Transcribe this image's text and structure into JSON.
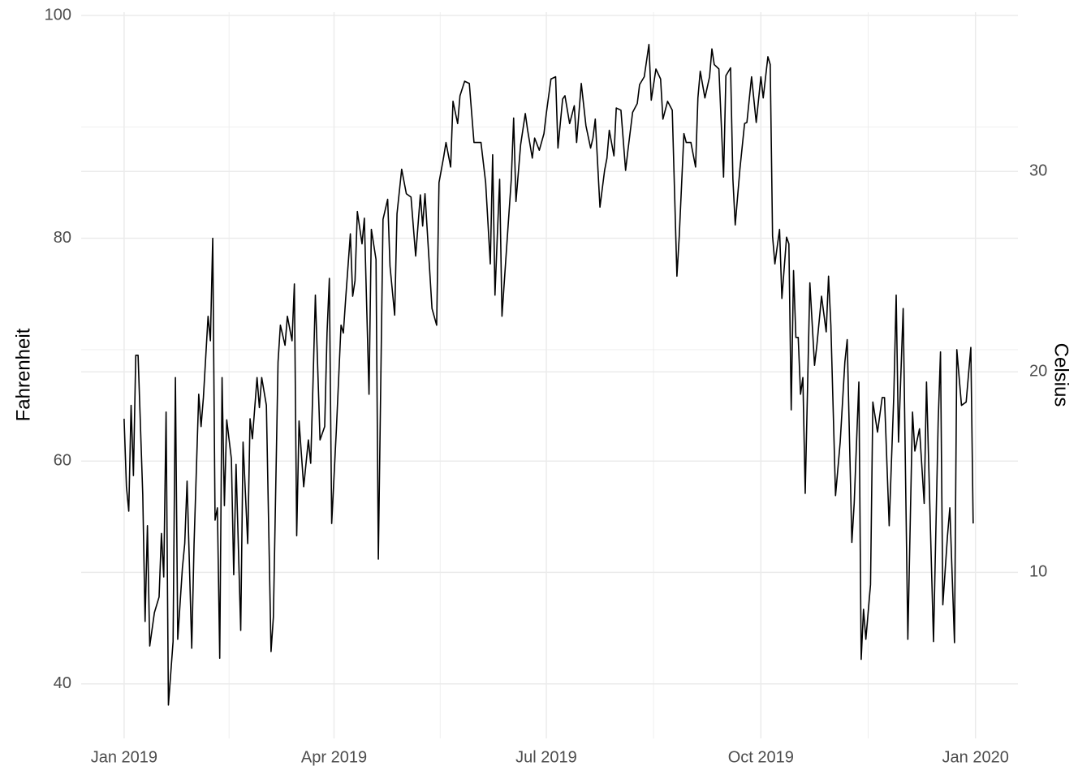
{
  "chart_data": {
    "type": "line",
    "ylabel": "Fahrenheit",
    "y2label": "Celsius",
    "color": "#000000",
    "grid": true,
    "xlim": [
      -18.4,
      383.2
    ],
    "xticks": [
      {
        "value": 0,
        "label": "Jan 2019"
      },
      {
        "value": 90,
        "label": "Apr 2019"
      },
      {
        "value": 181,
        "label": "Jul 2019"
      },
      {
        "value": 273,
        "label": "Oct 2019"
      },
      {
        "value": 365,
        "label": "Jan 2020"
      }
    ],
    "x_minor_ticks": [
      45,
      135.5,
      227,
      319
    ],
    "ylim": [
      35.1,
      100.3
    ],
    "yticks": [
      40,
      60,
      80,
      100
    ],
    "y_minor_ticks": [
      50,
      70,
      90
    ],
    "y2lim": [
      1.72,
      37.94
    ],
    "y2ticks": [
      10,
      20,
      30
    ],
    "x": [
      0,
      1,
      2,
      3,
      4,
      5,
      6,
      8,
      9,
      10,
      11,
      13,
      15,
      16,
      17,
      18,
      19,
      21,
      22,
      23,
      25,
      26,
      27,
      29,
      30,
      32,
      33,
      34,
      36,
      37,
      38,
      39,
      40,
      41,
      42,
      43,
      44,
      46,
      47,
      48,
      50,
      51,
      53,
      54,
      55,
      57,
      58,
      59,
      61,
      63,
      64,
      66,
      67,
      69,
      70,
      72,
      73,
      74,
      75,
      77,
      79,
      80,
      81,
      82,
      84,
      86,
      87,
      88,
      89,
      91,
      93,
      94,
      95,
      97,
      98,
      99,
      100,
      102,
      103,
      105,
      106,
      108,
      109,
      111,
      113,
      114,
      116,
      117,
      119,
      121,
      123,
      125,
      127,
      128,
      129,
      132,
      134,
      135,
      137,
      138,
      140,
      141,
      143,
      144,
      146,
      148,
      150,
      153,
      155,
      157,
      158,
      159,
      160,
      161,
      162,
      164,
      166,
      167,
      168,
      170,
      172,
      173,
      175,
      176,
      178,
      180,
      181,
      183,
      185,
      186,
      188,
      189,
      191,
      193,
      194,
      196,
      198,
      200,
      201,
      202,
      204,
      206,
      207,
      208,
      210,
      211,
      213,
      215,
      216,
      218,
      220,
      221,
      223,
      225,
      226,
      228,
      230,
      231,
      233,
      235,
      237,
      238,
      240,
      241,
      243,
      245,
      246,
      247,
      249,
      251,
      252,
      253,
      255,
      257,
      258,
      260,
      261,
      262,
      264,
      266,
      267,
      269,
      271,
      273,
      274,
      276,
      277,
      278,
      279,
      281,
      282,
      284,
      285,
      286,
      287,
      288,
      289,
      290,
      291,
      292,
      294,
      296,
      297,
      299,
      301,
      302,
      303,
      305,
      307,
      309,
      310,
      312,
      313,
      315,
      316,
      317,
      318,
      320,
      321,
      323,
      325,
      326,
      328,
      330,
      331,
      332,
      334,
      336,
      338,
      339,
      341,
      343,
      344,
      346,
      347,
      349,
      350,
      351,
      353,
      354,
      356,
      357,
      359,
      361,
      363,
      364
    ],
    "values": [
      63.8,
      57.7,
      55.5,
      65,
      58.7,
      69.5,
      69.5,
      57,
      45.6,
      54.2,
      43.4,
      46.4,
      47.8,
      53.5,
      49.6,
      64.4,
      38.1,
      43.8,
      67.5,
      44,
      50.4,
      52.6,
      58.2,
      43.2,
      52.6,
      66,
      63.1,
      65.7,
      73,
      70.8,
      80,
      54.7,
      55.8,
      42.3,
      67.5,
      56,
      63.7,
      60.2,
      49.8,
      59.7,
      44.8,
      61.7,
      52.6,
      63.8,
      62,
      67.5,
      64.8,
      67.5,
      65,
      42.9,
      46,
      68.9,
      72.2,
      70.4,
      73,
      70.8,
      75.9,
      53.3,
      63.6,
      57.7,
      61.9,
      59.8,
      67.1,
      74.9,
      61.9,
      63.1,
      71.5,
      76.4,
      54.4,
      62.8,
      72.2,
      71.5,
      74.6,
      80.4,
      74.8,
      76.2,
      82.4,
      79.5,
      81.8,
      66,
      80.8,
      78.1,
      51.2,
      81.7,
      83.5,
      77.5,
      73.1,
      82.2,
      86.2,
      84,
      83.7,
      78.4,
      83.9,
      81.1,
      84,
      73.7,
      72.2,
      85,
      87.3,
      88.6,
      86.4,
      92.3,
      90.3,
      92.8,
      94.1,
      93.9,
      88.6,
      88.6,
      85,
      77.7,
      87.5,
      74.9,
      80.2,
      85.3,
      73,
      79.2,
      85.3,
      90.8,
      83.3,
      88.4,
      91.2,
      89.7,
      87.2,
      89,
      87.9,
      89.4,
      91.2,
      94.3,
      94.5,
      88.1,
      92.5,
      92.8,
      90.3,
      91.9,
      88.6,
      93.9,
      90.1,
      88.1,
      89,
      90.7,
      82.8,
      86.1,
      87.2,
      89.7,
      87.4,
      91.7,
      91.5,
      86.1,
      87.9,
      91.3,
      92.1,
      93.8,
      94.5,
      97.4,
      92.4,
      95.2,
      94.3,
      90.7,
      92.3,
      91.5,
      76.6,
      80.2,
      89.4,
      88.6,
      88.6,
      86.4,
      92.6,
      95,
      92.6,
      94.5,
      97,
      95.6,
      95.2,
      85.5,
      94.6,
      95.3,
      85.3,
      81.2,
      86.2,
      90.3,
      90.4,
      94.5,
      90.4,
      94.5,
      92.6,
      96.3,
      95.6,
      80.2,
      77.7,
      80.8,
      74.6,
      80.1,
      79.5,
      64.6,
      77.1,
      71.1,
      71.1,
      66,
      67.5,
      57.1,
      76,
      68.6,
      70.4,
      74.8,
      71.6,
      76.6,
      72.2,
      56.9,
      61.7,
      68.9,
      70.9,
      52.7,
      56.2,
      67.1,
      42.2,
      46.7,
      44,
      48.9,
      65.3,
      62.6,
      65.7,
      65.7,
      54.2,
      66,
      74.9,
      61.7,
      73.7,
      44,
      64.4,
      60.9,
      62.9,
      56.2,
      67.1,
      51.5,
      43.8,
      63.5,
      69.8,
      47.1,
      53.3,
      55.8,
      43.7,
      70,
      65,
      65.3,
      70.2,
      54.4
    ]
  }
}
